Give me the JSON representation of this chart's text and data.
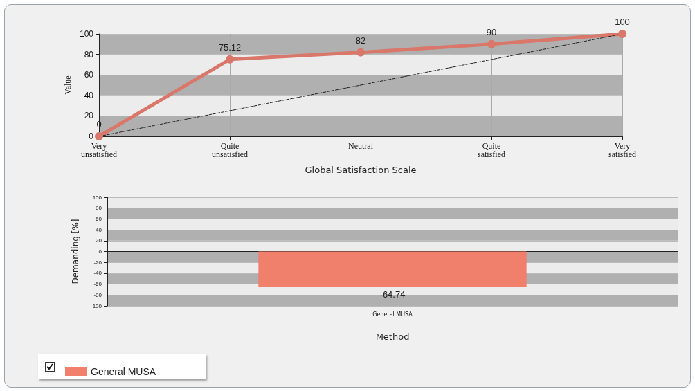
{
  "chart_data": [
    {
      "type": "line",
      "xlabel": "Global Satisfaction Scale",
      "ylabel": "Value",
      "categories": [
        "Very unsatisfied",
        "Quite unsatisfied",
        "Neutral",
        "Quite satisfied",
        "Very satisfied"
      ],
      "series": [
        {
          "color": "#d9776a",
          "values": [
            0,
            75.12,
            82,
            90,
            100
          ],
          "value_labels": [
            "0",
            "75.12",
            "82",
            "90",
            "100"
          ],
          "marker": "circle",
          "line_style": "solid"
        },
        {
          "color": "#222222",
          "values": [
            0,
            25,
            50,
            75,
            100
          ],
          "marker": "none",
          "line_style": "dashed"
        }
      ],
      "ylim": [
        0,
        100
      ],
      "yticks": [
        0,
        20,
        40,
        60,
        80,
        100
      ],
      "grid": true
    },
    {
      "type": "bar",
      "xlabel": "Method",
      "ylabel": "Demanding [%]",
      "categories": [
        "General MUSA"
      ],
      "series": [
        {
          "name": "General MUSA",
          "color": "#f07f6c",
          "values": [
            -64.74
          ]
        }
      ],
      "data_labels": true,
      "ylim": [
        -100,
        100
      ],
      "yticks": [
        -100,
        -80,
        -60,
        -40,
        -20,
        0,
        20,
        40,
        60,
        80,
        100
      ],
      "grid": true,
      "legend": "bottom left"
    }
  ]
}
